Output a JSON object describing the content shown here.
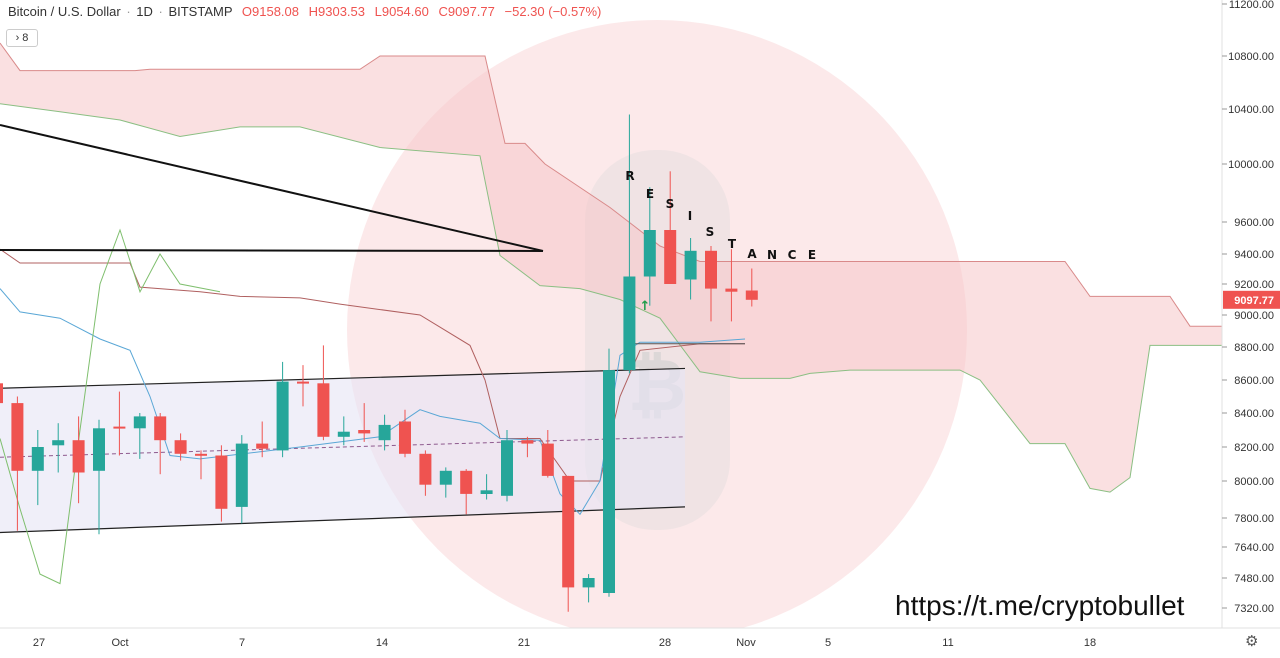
{
  "header": {
    "symbol": "Bitcoin / U.S. Dollar",
    "interval": "1D",
    "exchange": "BITSTAMP",
    "open": "O9158.08",
    "high": "H9303.53",
    "low": "L9054.60",
    "close": "C9097.77",
    "change": "−52.30 (−0.57%)"
  },
  "indicator_toggle": {
    "label": "8"
  },
  "price_tag": "9097.77",
  "watermark_text": "https://t.me/cryptobullet",
  "annotation_letters": [
    "R",
    "E",
    "S",
    "I",
    "S",
    "T",
    "A",
    "N",
    "C",
    "E"
  ],
  "colors": {
    "bull": "#26a69a",
    "bear": "#ef5350",
    "cloud": "#f6c7c9",
    "channel": "#e6e4f5",
    "price_tag": "#ef5350"
  },
  "chart_data": {
    "type": "candlestick",
    "title": "Bitcoin / U.S. Dollar · 1D · BITSTAMP",
    "y_axis_ticks": [
      11200,
      10800,
      10400,
      10000,
      9600,
      9400,
      9200,
      9000,
      8800,
      8600,
      8400,
      8200,
      8000,
      7800,
      7640,
      7480,
      7320
    ],
    "x_axis_ticks": [
      "27",
      "Oct",
      "7",
      "14",
      "21",
      "28",
      "Nov",
      "5",
      "11",
      "18"
    ],
    "last_price": 9097.77,
    "candles": [
      {
        "o": 8580,
        "h": 8620,
        "l": 8300,
        "c": 8460
      },
      {
        "o": 8460,
        "h": 8500,
        "l": 7730,
        "c": 8060
      },
      {
        "o": 8060,
        "h": 8300,
        "l": 7870,
        "c": 8200
      },
      {
        "o": 8210,
        "h": 8340,
        "l": 8050,
        "c": 8240
      },
      {
        "o": 8240,
        "h": 8380,
        "l": 7880,
        "c": 8050
      },
      {
        "o": 8060,
        "h": 8360,
        "l": 7710,
        "c": 8310
      },
      {
        "o": 8320,
        "h": 8530,
        "l": 8150,
        "c": 8310
      },
      {
        "o": 8310,
        "h": 8400,
        "l": 8130,
        "c": 8380
      },
      {
        "o": 8380,
        "h": 8400,
        "l": 8040,
        "c": 8240
      },
      {
        "o": 8240,
        "h": 8280,
        "l": 8120,
        "c": 8160
      },
      {
        "o": 8160,
        "h": 8180,
        "l": 8010,
        "c": 8150
      },
      {
        "o": 8150,
        "h": 8210,
        "l": 7780,
        "c": 7850
      },
      {
        "o": 7860,
        "h": 8270,
        "l": 7770,
        "c": 8220
      },
      {
        "o": 8220,
        "h": 8350,
        "l": 8140,
        "c": 8190
      },
      {
        "o": 8180,
        "h": 8710,
        "l": 8140,
        "c": 8590
      },
      {
        "o": 8590,
        "h": 8690,
        "l": 8440,
        "c": 8580
      },
      {
        "o": 8580,
        "h": 8810,
        "l": 8240,
        "c": 8260
      },
      {
        "o": 8260,
        "h": 8380,
        "l": 8210,
        "c": 8290
      },
      {
        "o": 8300,
        "h": 8460,
        "l": 8230,
        "c": 8280
      },
      {
        "o": 8240,
        "h": 8390,
        "l": 8180,
        "c": 8330
      },
      {
        "o": 8350,
        "h": 8420,
        "l": 8140,
        "c": 8160
      },
      {
        "o": 8160,
        "h": 8180,
        "l": 7920,
        "c": 7980
      },
      {
        "o": 7980,
        "h": 8080,
        "l": 7910,
        "c": 8060
      },
      {
        "o": 8060,
        "h": 8070,
        "l": 7820,
        "c": 7930
      },
      {
        "o": 7930,
        "h": 8040,
        "l": 7900,
        "c": 7950
      },
      {
        "o": 7920,
        "h": 8300,
        "l": 7890,
        "c": 8240
      },
      {
        "o": 8240,
        "h": 8260,
        "l": 8140,
        "c": 8220
      },
      {
        "o": 8220,
        "h": 8300,
        "l": 8020,
        "c": 8030
      },
      {
        "o": 8030,
        "h": 8030,
        "l": 7300,
        "c": 7430
      },
      {
        "o": 7430,
        "h": 7500,
        "l": 7350,
        "c": 7480
      },
      {
        "o": 7400,
        "h": 8790,
        "l": 7380,
        "c": 8660
      },
      {
        "o": 8660,
        "h": 10360,
        "l": 8640,
        "c": 9250
      },
      {
        "o": 9250,
        "h": 9840,
        "l": 9060,
        "c": 9550
      },
      {
        "o": 9550,
        "h": 9950,
        "l": 9200,
        "c": 9200
      },
      {
        "o": 9230,
        "h": 9500,
        "l": 9100,
        "c": 9420
      },
      {
        "o": 9420,
        "h": 9450,
        "l": 8960,
        "c": 9170
      },
      {
        "o": 9170,
        "h": 9430,
        "l": 8960,
        "c": 9150
      },
      {
        "o": 9158.08,
        "h": 9303.53,
        "l": 9054.6,
        "c": 9097.77
      }
    ]
  }
}
